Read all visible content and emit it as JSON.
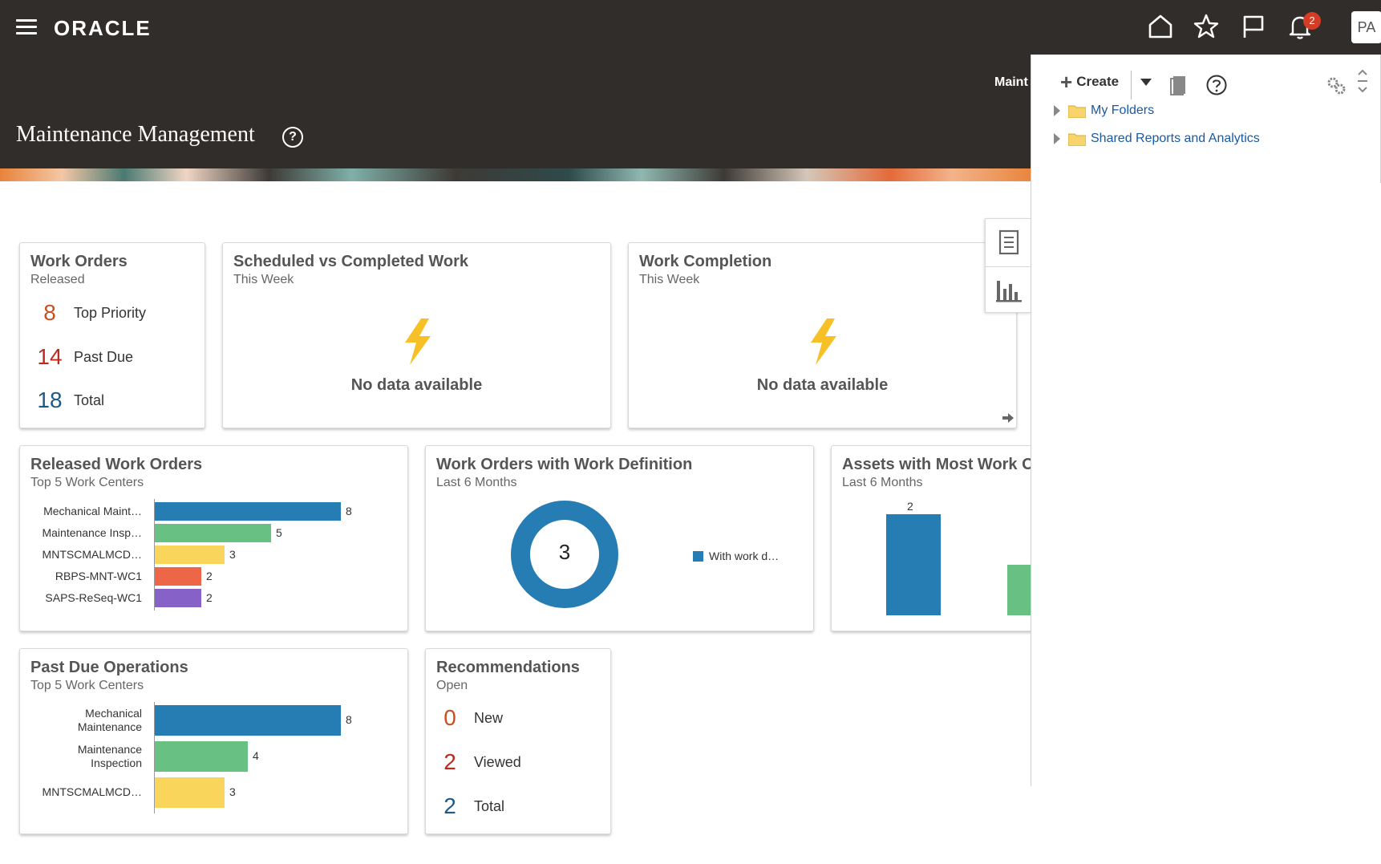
{
  "header": {
    "logo": "ORACLE",
    "notifications_count": "2",
    "avatar_initials": "PA",
    "page_title": "Maintenance Management",
    "title_help": "?",
    "truncated_label": "Maint"
  },
  "cards": {
    "work_orders": {
      "title": "Work Orders",
      "subtitle": "Released",
      "metrics": [
        {
          "value": "8",
          "label": "Top Priority",
          "color": "#c8501f"
        },
        {
          "value": "14",
          "label": "Past Due",
          "color": "#c0281e"
        },
        {
          "value": "18",
          "label": "Total",
          "color": "#1b5a88"
        }
      ]
    },
    "scheduled": {
      "title": "Scheduled vs Completed Work",
      "subtitle": "This Week",
      "message": "No data available"
    },
    "completion": {
      "title": "Work Completion",
      "subtitle": "This Week",
      "message": "No data available"
    },
    "released_wo": {
      "title": "Released Work Orders",
      "subtitle": "Top 5 Work Centers"
    },
    "wo_definition": {
      "title": "Work Orders with Work Definition",
      "subtitle": "Last 6 Months",
      "center_value": "3",
      "legend": "With work d…"
    },
    "assets": {
      "title": "Assets with Most Work Orders",
      "subtitle": "Last 6 Months",
      "top_label": "2"
    },
    "past_due": {
      "title": "Past Due Operations",
      "subtitle": "Top 5 Work Centers"
    },
    "recommendations": {
      "title": "Recommendations",
      "subtitle": "Open",
      "metrics": [
        {
          "value": "0",
          "label": "New",
          "color": "#c8501f"
        },
        {
          "value": "2",
          "label": "Viewed",
          "color": "#c0281e"
        },
        {
          "value": "2",
          "label": "Total",
          "color": "#1b5a88"
        }
      ]
    }
  },
  "chart_data": [
    {
      "type": "bar",
      "orientation": "horizontal",
      "title": "Released Work Orders",
      "categories": [
        "Mechanical Maint…",
        "Maintenance Insp…",
        "MNTSCMALMCD…",
        "RBPS-MNT-WC1",
        "SAPS-ReSeq-WC1"
      ],
      "values": [
        8,
        5,
        3,
        2,
        2
      ],
      "colors": [
        "#267db3",
        "#68c182",
        "#fad55c",
        "#ed6647",
        "#8561c8"
      ]
    },
    {
      "type": "pie",
      "title": "Work Orders with Work Definition",
      "categories": [
        "With work d…"
      ],
      "values": [
        3
      ],
      "colors": [
        "#267db3"
      ]
    },
    {
      "type": "bar",
      "title": "Assets with Most Work Orders",
      "values": [
        2,
        1
      ],
      "colors": [
        "#267db3",
        "#68c182"
      ],
      "ylim": [
        0,
        2
      ]
    },
    {
      "type": "bar",
      "orientation": "horizontal",
      "title": "Past Due Operations",
      "categories": [
        "Mechanical Maintenance",
        "Maintenance Inspection",
        "MNTSCMALMCD…"
      ],
      "values": [
        8,
        4,
        3
      ],
      "colors": [
        "#267db3",
        "#68c182",
        "#fad55c"
      ]
    }
  ],
  "panel": {
    "create_label": "Create",
    "tree": [
      {
        "label": "My Folders"
      },
      {
        "label": "Shared Reports and Analytics"
      }
    ]
  }
}
